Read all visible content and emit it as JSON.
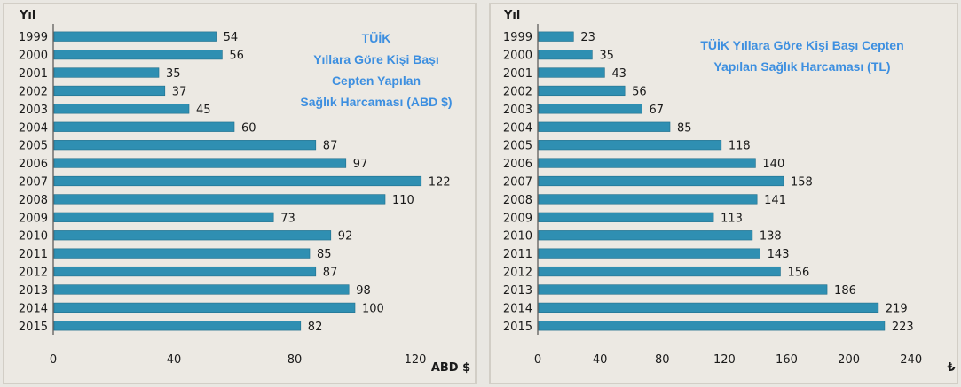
{
  "chart_data": [
    {
      "type": "bar",
      "orientation": "horizontal",
      "title_lines": [
        "TÜİK",
        "Yıllara Göre Kişi Başı",
        "Cepten Yapılan",
        "Sağlık Harcaması (ABD $)"
      ],
      "ylabel": "Yıl",
      "xlabel": "ABD $",
      "categories": [
        "1999",
        "2000",
        "2001",
        "2002",
        "2003",
        "2004",
        "2005",
        "2006",
        "2007",
        "2008",
        "2009",
        "2010",
        "2011",
        "2012",
        "2013",
        "2014",
        "2015"
      ],
      "values": [
        54,
        56,
        35,
        37,
        45,
        60,
        87,
        97,
        122,
        110,
        73,
        92,
        85,
        87,
        98,
        100,
        82
      ],
      "xticks": [
        0,
        40,
        80,
        120
      ],
      "xlim": [
        0,
        135
      ],
      "bar_color": "#2f8fb2",
      "grid": false
    },
    {
      "type": "bar",
      "orientation": "horizontal",
      "title_lines": [
        "TÜİK Yıllara Göre Kişi Başı Cepten",
        "Yapılan Sağlık Harcaması (TL)"
      ],
      "ylabel": "Yıl",
      "xlabel": "₺",
      "categories": [
        "1999",
        "2000",
        "2001",
        "2002",
        "2003",
        "2004",
        "2005",
        "2006",
        "2007",
        "2008",
        "2009",
        "2010",
        "2011",
        "2012",
        "2013",
        "2014",
        "2015"
      ],
      "values": [
        23,
        35,
        43,
        56,
        67,
        85,
        118,
        140,
        158,
        141,
        113,
        138,
        143,
        156,
        186,
        219,
        223
      ],
      "xticks": [
        0,
        40,
        80,
        120,
        160,
        200,
        240
      ],
      "xlim": [
        0,
        255
      ],
      "bar_color": "#2f8fb2",
      "grid": false
    }
  ]
}
